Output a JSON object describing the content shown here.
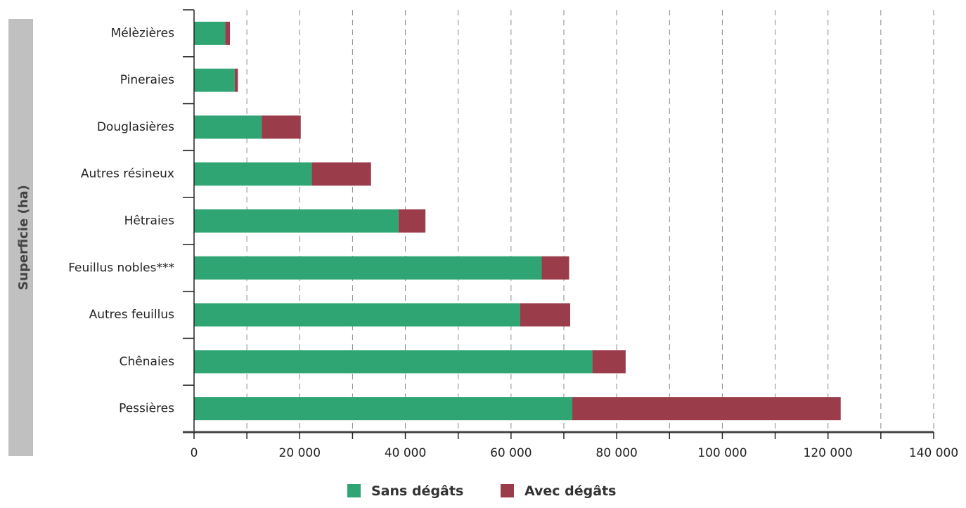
{
  "chart_data": {
    "type": "bar",
    "orientation": "horizontal",
    "stacked": true,
    "ylabel": "Superficie (ha)",
    "xlabel": "",
    "xlim": [
      0,
      140000
    ],
    "x_ticks": [
      {
        "value": 0,
        "label": "0"
      },
      {
        "value": 20000,
        "label": "20 000"
      },
      {
        "value": 40000,
        "label": "40 000"
      },
      {
        "value": 60000,
        "label": "60 000"
      },
      {
        "value": 80000,
        "label": "80 000"
      },
      {
        "value": 100000,
        "label": "100 000"
      },
      {
        "value": 120000,
        "label": "120 000"
      },
      {
        "value": 140000,
        "label": "140 000"
      }
    ],
    "grid": "vertical dashed every 10 000",
    "categories": [
      "Mélèzières",
      "Pineraies",
      "Douglasières",
      "Autres résineux",
      "Hêtraies",
      "Feuillus nobles***",
      "Autres feuillus",
      "Chênaies",
      "Pessières"
    ],
    "series": [
      {
        "name": "Sans dégâts",
        "color": "#2ea572",
        "values": [
          5900,
          7700,
          12800,
          22300,
          38700,
          65800,
          61700,
          75400,
          71600
        ]
      },
      {
        "name": "Avec dégâts",
        "color": "#9b3c4b",
        "values": [
          900,
          600,
          7400,
          11200,
          5100,
          5200,
          9500,
          6300,
          50800
        ]
      }
    ],
    "legend_position": "bottom-center"
  }
}
